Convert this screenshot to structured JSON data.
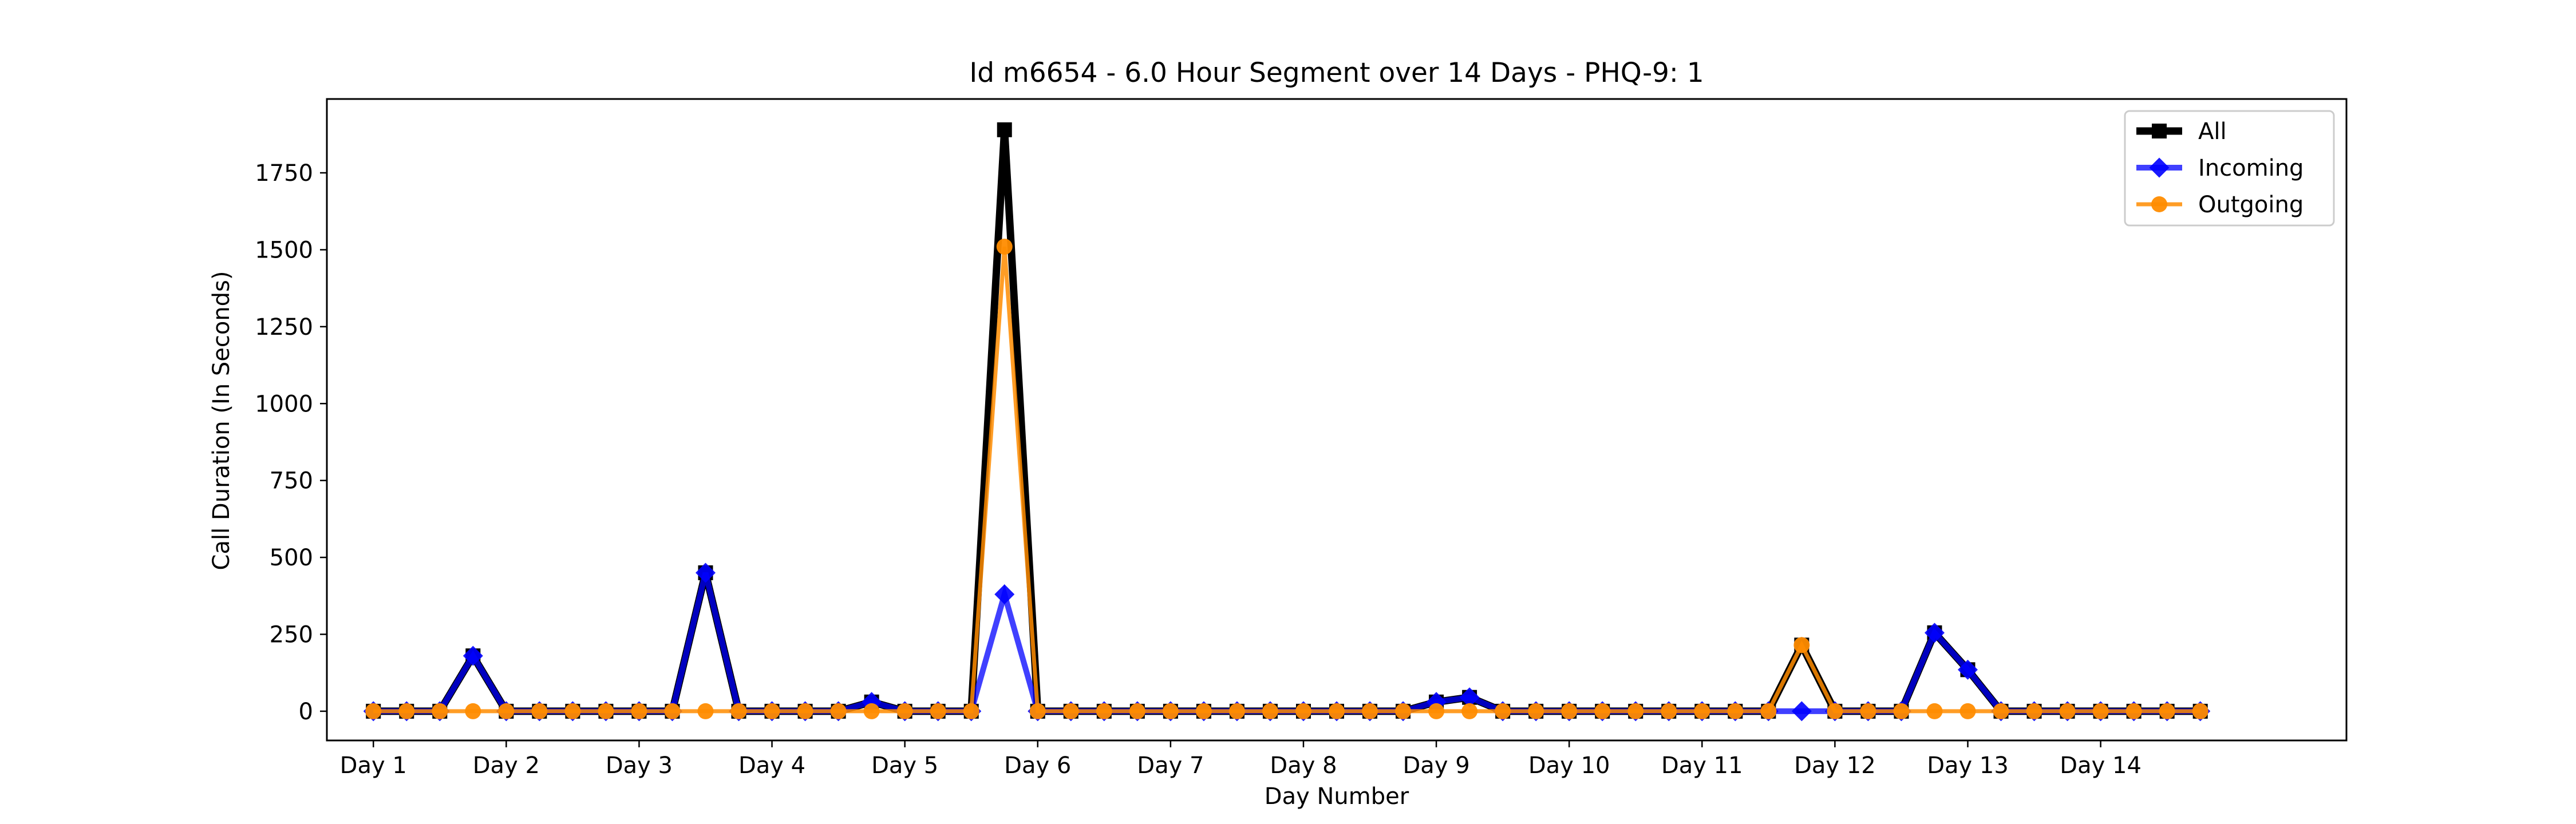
{
  "chart_data": {
    "type": "line",
    "title": "Id m6654 - 6.0 Hour Segment over 14 Days - PHQ-9: 1",
    "xlabel": "Day Number",
    "ylabel": "Call Duration (In Seconds)",
    "x_tick_labels": [
      "Day 1",
      "Day 2",
      "Day 3",
      "Day 4",
      "Day 5",
      "Day 6",
      "Day 7",
      "Day 8",
      "Day 9",
      "Day 10",
      "Day 11",
      "Day 12",
      "Day 13",
      "Day 14"
    ],
    "y_ticks": [
      0,
      250,
      500,
      750,
      1000,
      1250,
      1500,
      1750
    ],
    "ylim": [
      -95,
      1990
    ],
    "xlim": [
      -1.4,
      59.4
    ],
    "grid": false,
    "legend_position": "top-right",
    "x": [
      0,
      1,
      2,
      3,
      4,
      5,
      6,
      7,
      8,
      9,
      10,
      11,
      12,
      13,
      14,
      15,
      16,
      17,
      18,
      19,
      20,
      21,
      22,
      23,
      24,
      25,
      26,
      27,
      28,
      29,
      30,
      31,
      32,
      33,
      34,
      35,
      36,
      37,
      38,
      39,
      40,
      41,
      42,
      43,
      44,
      45,
      46,
      47,
      48,
      49,
      50,
      51,
      52,
      53,
      54,
      55
    ],
    "series": [
      {
        "name": "All",
        "color": "#000000",
        "marker": "square",
        "values": [
          0,
          0,
          0,
          180,
          0,
          0,
          0,
          0,
          0,
          0,
          450,
          0,
          0,
          0,
          0,
          30,
          0,
          0,
          0,
          1890,
          0,
          0,
          0,
          0,
          0,
          0,
          0,
          0,
          0,
          0,
          0,
          0,
          30,
          45,
          0,
          0,
          0,
          0,
          0,
          0,
          0,
          0,
          0,
          215,
          0,
          0,
          0,
          255,
          135,
          0,
          0,
          0,
          0,
          0,
          0,
          0
        ]
      },
      {
        "name": "Incoming",
        "color": "#0000ff",
        "marker": "diamond",
        "values": [
          0,
          0,
          0,
          180,
          0,
          0,
          0,
          0,
          0,
          0,
          450,
          0,
          0,
          0,
          0,
          30,
          0,
          0,
          0,
          380,
          0,
          0,
          0,
          0,
          0,
          0,
          0,
          0,
          0,
          0,
          0,
          0,
          30,
          45,
          0,
          0,
          0,
          0,
          0,
          0,
          0,
          0,
          0,
          0,
          0,
          0,
          0,
          255,
          135,
          0,
          0,
          0,
          0,
          0,
          0,
          0
        ]
      },
      {
        "name": "Outgoing",
        "color": "#ff8c00",
        "marker": "circle",
        "values": [
          0,
          0,
          0,
          0,
          0,
          0,
          0,
          0,
          0,
          0,
          0,
          0,
          0,
          0,
          0,
          0,
          0,
          0,
          0,
          1510,
          0,
          0,
          0,
          0,
          0,
          0,
          0,
          0,
          0,
          0,
          0,
          0,
          0,
          0,
          0,
          0,
          0,
          0,
          0,
          0,
          0,
          0,
          0,
          215,
          0,
          0,
          0,
          0,
          0,
          0,
          0,
          0,
          0,
          0,
          0,
          0
        ]
      }
    ]
  }
}
